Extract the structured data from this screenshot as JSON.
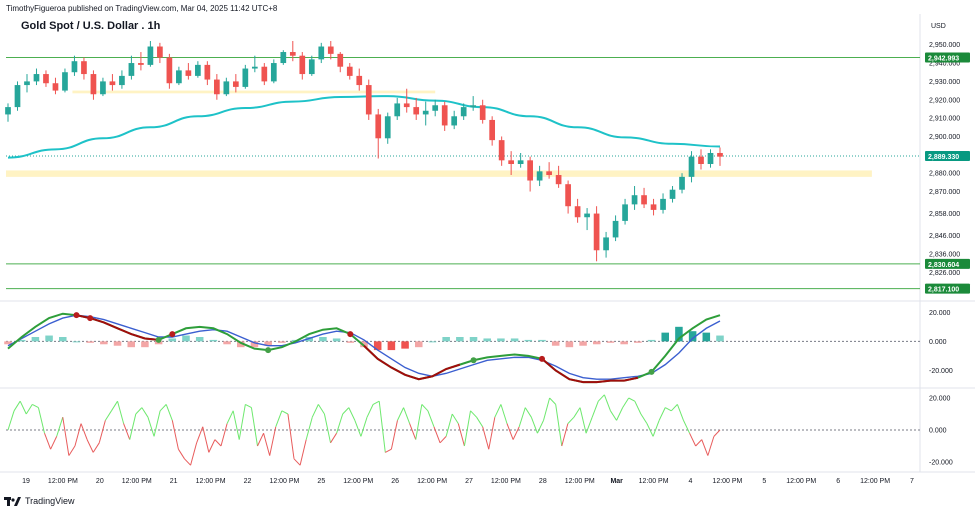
{
  "header": {
    "publisher_line": "TimothyFigueroa published on TradingView.com, Mar 04, 2025 11:42 UTC+8",
    "title": "Gold Spot / U.S. Dollar . 1h"
  },
  "footer": {
    "brand": "TradingView",
    "logo_icon": "tradingview-logo-icon"
  },
  "colors": {
    "up": "#26a69a",
    "down": "#ef5350",
    "ma": "#1ec2c8",
    "level": "#4caf50",
    "zone": "#fff3c4",
    "macd_fast": "#2e9e3a",
    "macd_slow": "#3b5fd0",
    "macd_fast_bear": "#a10c0c",
    "osc_up": "#6ee86e",
    "osc_down": "#e85c5c"
  },
  "chart_data": {
    "type": "candlestick",
    "symbol": "Gold Spot / U.S. Dollar",
    "timeframe": "1h",
    "price_axis": {
      "unit": "USD",
      "range": [
        2812,
        2958
      ],
      "ticks": [
        {
          "value": 2950,
          "label": "2,950.000"
        },
        {
          "value": 2940,
          "label": "2,940.000"
        },
        {
          "value": 2930,
          "label": "2,930.000"
        },
        {
          "value": 2920,
          "label": "2,920.000"
        },
        {
          "value": 2910,
          "label": "2,910.000"
        },
        {
          "value": 2900,
          "label": "2,900.000"
        },
        {
          "value": 2880,
          "label": "2,880.000"
        },
        {
          "value": 2870,
          "label": "2,870.000"
        },
        {
          "value": 2858,
          "label": "2,858.000"
        },
        {
          "value": 2846,
          "label": "2,846.000"
        },
        {
          "value": 2836,
          "label": "2,836.000"
        },
        {
          "value": 2826,
          "label": "2,826.000"
        }
      ]
    },
    "time_axis": {
      "labels": [
        "19",
        "12:00 PM",
        "20",
        "12:00 PM",
        "21",
        "12:00 PM",
        "22",
        "12:00 PM",
        "25",
        "12:00 PM",
        "26",
        "12:00 PM",
        "27",
        "12:00 PM",
        "28",
        "12:00 PM",
        "Mar",
        "12:00 PM",
        "4",
        "12:00 PM",
        "5",
        "12:00 PM",
        "6",
        "12:00 PM",
        "7"
      ],
      "bold_labels": [
        "Mar"
      ]
    },
    "price_labels": [
      {
        "value": 2942.993,
        "label": "2,942.993"
      },
      {
        "value": 2889.33,
        "label": "2,889.330"
      },
      {
        "value": 2830.604,
        "label": "2,830.604"
      },
      {
        "value": 2817.1,
        "label": "2,817.100"
      }
    ],
    "horizontal_levels": [
      2942.993,
      2830.604,
      2817.1
    ],
    "current_price": 2889.33,
    "zones": [
      {
        "from_index": 7,
        "to_index": 45,
        "top": 2925,
        "bottom": 2923.5
      },
      {
        "from_index": 0,
        "to_index": 91,
        "top": 2881.5,
        "bottom": 2878
      }
    ],
    "moving_average": [
      2888.5,
      2893,
      2899,
      2905,
      2911,
      2915.5,
      2919,
      2921.5,
      2922,
      2919.5,
      2916,
      2911,
      2905,
      2899.5,
      2896,
      2894.5
    ],
    "candles": [
      [
        2912,
        2918,
        2908,
        2916
      ],
      [
        2916,
        2930,
        2914,
        2928
      ],
      [
        2928,
        2934,
        2924,
        2930
      ],
      [
        2930,
        2937,
        2928,
        2934
      ],
      [
        2934,
        2936,
        2927,
        2929
      ],
      [
        2929,
        2932,
        2923,
        2925
      ],
      [
        2925,
        2937,
        2924,
        2935
      ],
      [
        2935,
        2944,
        2933,
        2941
      ],
      [
        2941,
        2943,
        2931,
        2934
      ],
      [
        2934,
        2936,
        2920,
        2923
      ],
      [
        2923,
        2932,
        2922,
        2930
      ],
      [
        2930,
        2934,
        2925,
        2928
      ],
      [
        2928,
        2936,
        2926,
        2933
      ],
      [
        2933,
        2944,
        2931,
        2940
      ],
      [
        2940,
        2946,
        2936,
        2939
      ],
      [
        2939,
        2952,
        2938,
        2949
      ],
      [
        2949,
        2951,
        2940,
        2943
      ],
      [
        2943,
        2945,
        2926,
        2929
      ],
      [
        2929,
        2938,
        2928,
        2936
      ],
      [
        2936,
        2940,
        2931,
        2933
      ],
      [
        2933,
        2941,
        2932,
        2939
      ],
      [
        2939,
        2941,
        2928,
        2931
      ],
      [
        2931,
        2934,
        2920,
        2923
      ],
      [
        2923,
        2932,
        2922,
        2930
      ],
      [
        2930,
        2934,
        2924,
        2927
      ],
      [
        2927,
        2939,
        2926,
        2937
      ],
      [
        2937,
        2944,
        2935,
        2938
      ],
      [
        2938,
        2940,
        2928,
        2930
      ],
      [
        2930,
        2942,
        2929,
        2940
      ],
      [
        2940,
        2947,
        2939,
        2946
      ],
      [
        2946,
        2952,
        2941,
        2944
      ],
      [
        2944,
        2946,
        2931,
        2934
      ],
      [
        2934,
        2944,
        2933,
        2942
      ],
      [
        2942,
        2951,
        2940,
        2949
      ],
      [
        2949,
        2952,
        2942,
        2945
      ],
      [
        2945,
        2946,
        2935,
        2938
      ],
      [
        2938,
        2940,
        2931,
        2933
      ],
      [
        2933,
        2937,
        2925,
        2928
      ],
      [
        2928,
        2931,
        2909,
        2912
      ],
      [
        2912,
        2915,
        2888,
        2899
      ],
      [
        2899,
        2913,
        2896,
        2911
      ],
      [
        2911,
        2921,
        2909,
        2918
      ],
      [
        2918,
        2926,
        2913,
        2916
      ],
      [
        2916,
        2921,
        2909,
        2912
      ],
      [
        2912,
        2919,
        2906,
        2914
      ],
      [
        2914,
        2920,
        2911,
        2917
      ],
      [
        2917,
        2919,
        2903,
        2906
      ],
      [
        2906,
        2914,
        2904,
        2911
      ],
      [
        2911,
        2918,
        2909,
        2916
      ],
      [
        2916,
        2922,
        2914,
        2917
      ],
      [
        2917,
        2920,
        2907,
        2909
      ],
      [
        2909,
        2911,
        2895,
        2898
      ],
      [
        2898,
        2900,
        2884,
        2887
      ],
      [
        2887,
        2892,
        2879,
        2885
      ],
      [
        2885,
        2891,
        2883,
        2887
      ],
      [
        2887,
        2889,
        2870,
        2876
      ],
      [
        2876,
        2884,
        2873,
        2881
      ],
      [
        2881,
        2886,
        2877,
        2879
      ],
      [
        2879,
        2884,
        2872,
        2874
      ],
      [
        2874,
        2876,
        2858,
        2862
      ],
      [
        2862,
        2866,
        2853,
        2856
      ],
      [
        2856,
        2861,
        2849,
        2858
      ],
      [
        2858,
        2862,
        2832,
        2838
      ],
      [
        2838,
        2848,
        2834,
        2845
      ],
      [
        2845,
        2857,
        2843,
        2854
      ],
      [
        2854,
        2866,
        2852,
        2863
      ],
      [
        2863,
        2873,
        2860,
        2868
      ],
      [
        2868,
        2872,
        2861,
        2863
      ],
      [
        2863,
        2866,
        2857,
        2860
      ],
      [
        2860,
        2869,
        2858,
        2866
      ],
      [
        2866,
        2873,
        2864,
        2871
      ],
      [
        2871,
        2880,
        2869,
        2878
      ],
      [
        2878,
        2892,
        2875,
        2889
      ],
      [
        2889,
        2893,
        2882,
        2885
      ],
      [
        2885,
        2893,
        2883,
        2891
      ],
      [
        2891,
        2894,
        2884,
        2889
      ]
    ],
    "macd_panel": {
      "ticks": [
        {
          "value": 20,
          "label": "20.000"
        },
        {
          "value": 0,
          "label": "0.000"
        },
        {
          "value": -20,
          "label": "-20.000"
        }
      ],
      "range": [
        -30,
        25
      ],
      "fast": [
        -5,
        3,
        10,
        16,
        19,
        18,
        16,
        13,
        9,
        5,
        2,
        1,
        5,
        9,
        10,
        9,
        5,
        -1,
        -5,
        -6,
        -4,
        0,
        5,
        8,
        9,
        5,
        -3,
        -12,
        -18,
        -23,
        -26,
        -24,
        -19,
        -16,
        -13,
        -11,
        -10,
        -9,
        -10,
        -12,
        -20,
        -26,
        -28,
        -28,
        -27,
        -27,
        -25,
        -21,
        -10,
        2,
        9,
        15,
        18
      ],
      "slow": [
        -3,
        2,
        7,
        12,
        16,
        18,
        17,
        15,
        12,
        9,
        6,
        3,
        3,
        5,
        7,
        8,
        7,
        3,
        -1,
        -3,
        -3,
        -1,
        2,
        5,
        7,
        6,
        1,
        -6,
        -12,
        -18,
        -22,
        -24,
        -22,
        -19,
        -16,
        -13,
        -12,
        -11,
        -11,
        -13,
        -17,
        -22,
        -25,
        -26,
        -26,
        -25,
        -24,
        -22,
        -16,
        -8,
        2,
        9,
        14
      ],
      "histogram": [
        -2,
        1,
        3,
        4,
        3,
        0,
        -1,
        -2,
        -3,
        -4,
        -4,
        -2,
        2,
        4,
        3,
        1,
        -2,
        -4,
        -4,
        -3,
        -1,
        1,
        3,
        3,
        2,
        -1,
        -4,
        -6,
        -6,
        -5,
        -4,
        0,
        3,
        3,
        3,
        2,
        2,
        2,
        1,
        1,
        -3,
        -4,
        -3,
        -2,
        -1,
        -2,
        -1,
        1,
        6,
        10,
        7,
        6,
        4
      ],
      "bear_segments": [
        [
          5,
          11
        ],
        [
          26,
          33
        ],
        [
          39,
          46
        ]
      ],
      "signal_dots": [
        {
          "index": 5,
          "value": 18,
          "kind": "bear"
        },
        {
          "index": 6,
          "value": 18,
          "kind": "bear"
        },
        {
          "index": 11,
          "value": 2,
          "kind": "bull"
        },
        {
          "index": 12,
          "value": 3,
          "kind": "bear"
        },
        {
          "index": 19,
          "value": -5,
          "kind": "bull"
        },
        {
          "index": 25,
          "value": 7,
          "kind": "bear"
        },
        {
          "index": 34,
          "value": -26,
          "kind": "bull"
        },
        {
          "index": 39,
          "value": -11,
          "kind": "bear"
        },
        {
          "index": 47,
          "value": -26,
          "kind": "bull"
        }
      ]
    },
    "oscillator_panel": {
      "ticks": [
        {
          "value": 20,
          "label": "20.000"
        },
        {
          "value": 0,
          "label": "0.000"
        },
        {
          "value": -20,
          "label": "-20.000"
        }
      ],
      "range": [
        -25,
        25
      ],
      "values": [
        0,
        12,
        18,
        10,
        16,
        14,
        -2,
        -12,
        -4,
        8,
        -16,
        -10,
        4,
        -6,
        -14,
        -8,
        6,
        12,
        18,
        4,
        -6,
        10,
        14,
        8,
        -4,
        12,
        16,
        6,
        -12,
        -18,
        -22,
        -8,
        2,
        -14,
        -6,
        -10,
        4,
        12,
        -6,
        16,
        14,
        -10,
        -2,
        -16,
        2,
        12,
        10,
        -18,
        -22,
        -6,
        8,
        16,
        10,
        -8,
        -2,
        10,
        14,
        6,
        -4,
        8,
        16,
        18,
        -14,
        -12,
        6,
        14,
        4,
        -6,
        16,
        12,
        2,
        -8,
        -4,
        10,
        4,
        -10,
        12,
        8,
        2,
        -12,
        8,
        16,
        4,
        -6,
        2,
        14,
        8,
        -2,
        6,
        20,
        16,
        -10,
        4,
        8,
        14,
        -2,
        8,
        18,
        22,
        12,
        6,
        14,
        20,
        18,
        10,
        4,
        -4,
        6,
        14,
        12,
        16,
        6,
        -2,
        -10,
        -6,
        -16,
        -4,
        0
      ]
    }
  }
}
